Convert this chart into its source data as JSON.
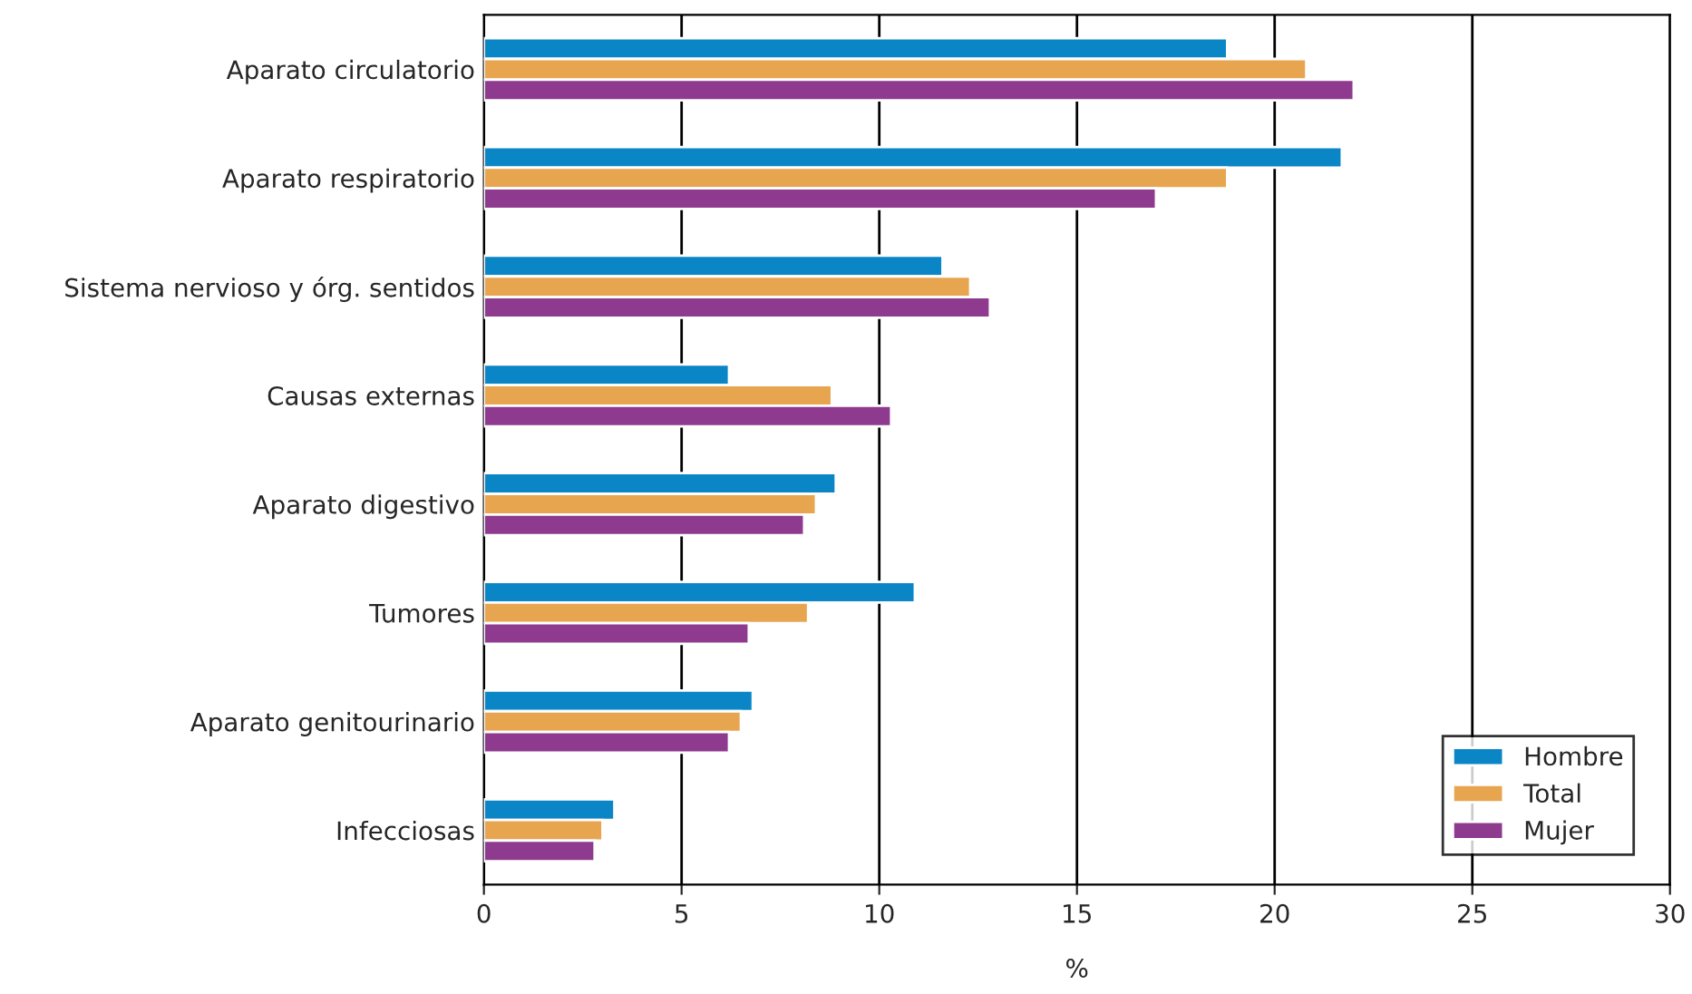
{
  "chart_data": {
    "type": "bar",
    "orientation": "horizontal",
    "xlabel": "%",
    "categories": [
      "Aparato circulatorio",
      "Aparato respiratorio",
      "Sistema nervioso y órg. sentidos",
      "Causas externas",
      "Aparato digestivo",
      "Tumores",
      "Aparato genitourinario",
      "Infecciosas"
    ],
    "series": [
      {
        "name": "Hombre",
        "color": "#0a86c6",
        "values": [
          18.8,
          21.7,
          11.6,
          6.2,
          8.9,
          10.9,
          6.8,
          3.3
        ]
      },
      {
        "name": "Total",
        "color": "#e8a550",
        "values": [
          20.8,
          18.8,
          12.3,
          8.8,
          8.4,
          8.2,
          6.5,
          3.0
        ]
      },
      {
        "name": "Mujer",
        "color": "#8e3a8e",
        "values": [
          22.0,
          17.0,
          12.8,
          10.3,
          8.1,
          6.7,
          6.2,
          2.8
        ]
      }
    ],
    "xlim": [
      0,
      30
    ],
    "xticks": [
      0,
      5,
      10,
      15,
      20,
      25,
      30
    ],
    "grid": "x",
    "legend": "bottom right"
  }
}
